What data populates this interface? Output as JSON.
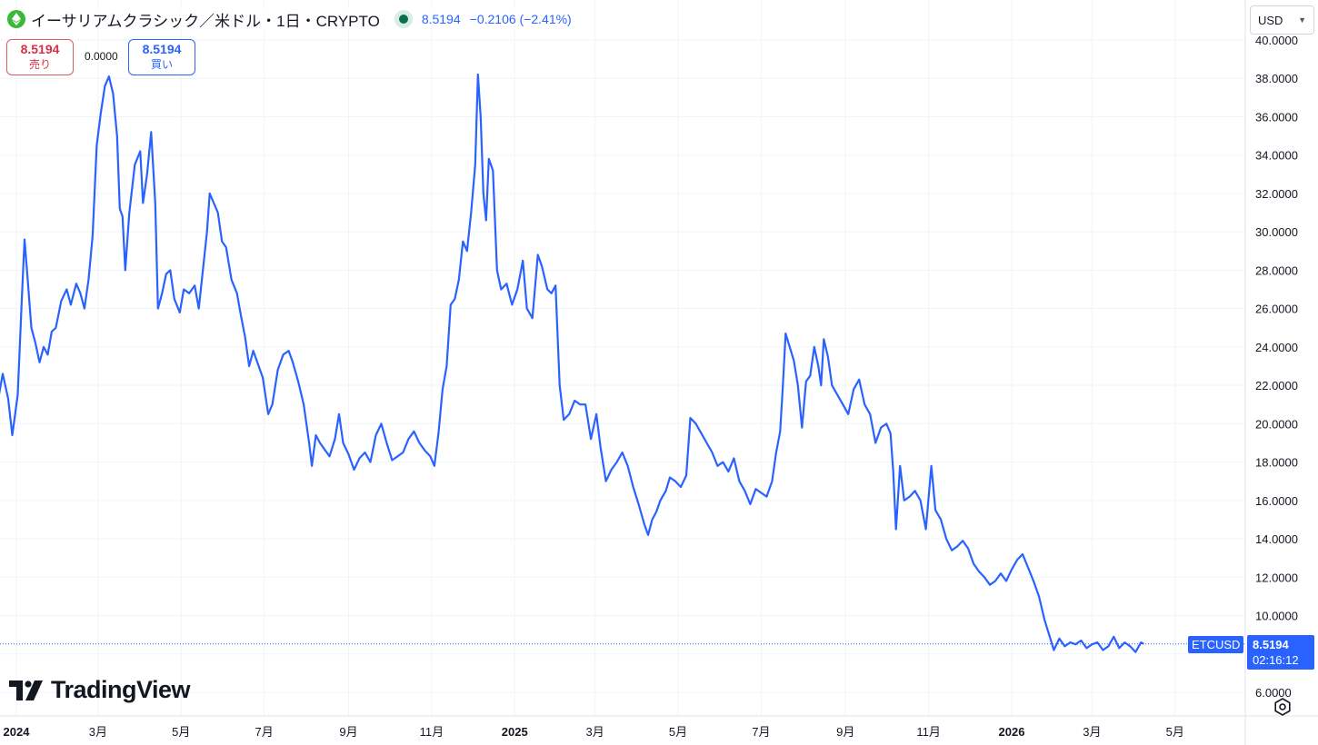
{
  "header": {
    "title": "イーサリアムクラシック／米ドル・1日・CRYPTO",
    "price": "8.5194",
    "change": "−0.2106 (−2.41%)"
  },
  "trade": {
    "sell_value": "8.5194",
    "sell_label": "売り",
    "spread": "0.0000",
    "buy_value": "8.5194",
    "buy_label": "買い"
  },
  "currency": "USD",
  "last_price": {
    "symbol": "ETCUSD",
    "value": "8.5194",
    "countdown": "02:16:12"
  },
  "logo_text": "TradingView",
  "colors": {
    "line": "#2962ff",
    "sell": "#d9304a",
    "buy": "#2962ff",
    "grid": "#f0f3fa"
  },
  "chart_data": {
    "type": "line",
    "title": "",
    "xlabel": "",
    "ylabel": "",
    "ylim": [
      5.0,
      40.5
    ],
    "y_ticks": [
      "6.0000",
      "8.0000",
      "10.0000",
      "12.0000",
      "14.0000",
      "16.0000",
      "18.0000",
      "20.0000",
      "22.0000",
      "24.0000",
      "26.0000",
      "28.0000",
      "30.0000",
      "32.0000",
      "34.0000",
      "36.0000",
      "38.0000",
      "40.0000"
    ],
    "x_ticks": [
      {
        "label": "2024",
        "date": "2024-01-01",
        "bold": true
      },
      {
        "label": "3月",
        "date": "2024-03-01"
      },
      {
        "label": "5月",
        "date": "2024-05-01"
      },
      {
        "label": "7月",
        "date": "2024-07-01"
      },
      {
        "label": "9月",
        "date": "2024-09-01"
      },
      {
        "label": "11月",
        "date": "2024-11-01"
      },
      {
        "label": "2025",
        "date": "2025-01-01",
        "bold": true
      },
      {
        "label": "3月",
        "date": "2025-03-01"
      },
      {
        "label": "5月",
        "date": "2025-05-01"
      },
      {
        "label": "7月",
        "date": "2025-07-01"
      },
      {
        "label": "9月",
        "date": "2025-09-01"
      },
      {
        "label": "11月",
        "date": "2025-11-01"
      },
      {
        "label": "2026",
        "date": "2026-01-01",
        "bold": true
      },
      {
        "label": "3月",
        "date": "2026-03-01"
      },
      {
        "label": "5月",
        "date": "2026-05-01"
      }
    ],
    "series": [
      {
        "values": [
          [
            "2023-12-18",
            21.0
          ],
          [
            "2023-12-22",
            22.6
          ],
          [
            "2023-12-26",
            21.3
          ],
          [
            "2023-12-29",
            19.4
          ],
          [
            "2024-01-02",
            21.5
          ],
          [
            "2024-01-05",
            26.5
          ],
          [
            "2024-01-07",
            29.6
          ],
          [
            "2024-01-09",
            27.8
          ],
          [
            "2024-01-12",
            25.0
          ],
          [
            "2024-01-15",
            24.2
          ],
          [
            "2024-01-18",
            23.2
          ],
          [
            "2024-01-21",
            24.0
          ],
          [
            "2024-01-24",
            23.6
          ],
          [
            "2024-01-27",
            24.8
          ],
          [
            "2024-01-30",
            25.0
          ],
          [
            "2024-02-03",
            26.4
          ],
          [
            "2024-02-07",
            27.0
          ],
          [
            "2024-02-10",
            26.2
          ],
          [
            "2024-02-14",
            27.3
          ],
          [
            "2024-02-17",
            26.8
          ],
          [
            "2024-02-20",
            26.0
          ],
          [
            "2024-02-23",
            27.5
          ],
          [
            "2024-02-26",
            29.8
          ],
          [
            "2024-02-29",
            34.5
          ],
          [
            "2024-03-03",
            36.2
          ],
          [
            "2024-03-06",
            37.6
          ],
          [
            "2024-03-09",
            38.1
          ],
          [
            "2024-03-12",
            37.2
          ],
          [
            "2024-03-15",
            35.0
          ],
          [
            "2024-03-17",
            31.2
          ],
          [
            "2024-03-19",
            30.8
          ],
          [
            "2024-03-21",
            28.0
          ],
          [
            "2024-03-24",
            31.0
          ],
          [
            "2024-03-28",
            33.5
          ],
          [
            "2024-04-01",
            34.2
          ],
          [
            "2024-04-03",
            31.5
          ],
          [
            "2024-04-06",
            33.0
          ],
          [
            "2024-04-09",
            35.2
          ],
          [
            "2024-04-12",
            31.5
          ],
          [
            "2024-04-14",
            26.0
          ],
          [
            "2024-04-17",
            26.8
          ],
          [
            "2024-04-20",
            27.8
          ],
          [
            "2024-04-23",
            28.0
          ],
          [
            "2024-04-26",
            26.5
          ],
          [
            "2024-04-30",
            25.8
          ],
          [
            "2024-05-03",
            27.0
          ],
          [
            "2024-05-07",
            26.8
          ],
          [
            "2024-05-11",
            27.2
          ],
          [
            "2024-05-14",
            26.0
          ],
          [
            "2024-05-17",
            28.0
          ],
          [
            "2024-05-20",
            30.0
          ],
          [
            "2024-05-22",
            32.0
          ],
          [
            "2024-05-25",
            31.5
          ],
          [
            "2024-05-28",
            31.0
          ],
          [
            "2024-05-31",
            29.5
          ],
          [
            "2024-06-03",
            29.2
          ],
          [
            "2024-06-07",
            27.5
          ],
          [
            "2024-06-11",
            26.8
          ],
          [
            "2024-06-14",
            25.6
          ],
          [
            "2024-06-17",
            24.5
          ],
          [
            "2024-06-20",
            23.0
          ],
          [
            "2024-06-23",
            23.8
          ],
          [
            "2024-06-26",
            23.2
          ],
          [
            "2024-06-30",
            22.4
          ],
          [
            "2024-07-04",
            20.5
          ],
          [
            "2024-07-07",
            21.0
          ],
          [
            "2024-07-11",
            22.8
          ],
          [
            "2024-07-15",
            23.6
          ],
          [
            "2024-07-19",
            23.8
          ],
          [
            "2024-07-22",
            23.2
          ],
          [
            "2024-07-26",
            22.2
          ],
          [
            "2024-07-30",
            21.0
          ],
          [
            "2024-08-03",
            19.0
          ],
          [
            "2024-08-05",
            17.8
          ],
          [
            "2024-08-08",
            19.4
          ],
          [
            "2024-08-11",
            19.0
          ],
          [
            "2024-08-14",
            18.7
          ],
          [
            "2024-08-18",
            18.3
          ],
          [
            "2024-08-22",
            19.2
          ],
          [
            "2024-08-25",
            20.5
          ],
          [
            "2024-08-28",
            19.0
          ],
          [
            "2024-09-01",
            18.4
          ],
          [
            "2024-09-05",
            17.6
          ],
          [
            "2024-09-09",
            18.2
          ],
          [
            "2024-09-13",
            18.5
          ],
          [
            "2024-09-17",
            18.0
          ],
          [
            "2024-09-21",
            19.4
          ],
          [
            "2024-09-25",
            20.0
          ],
          [
            "2024-09-29",
            19.0
          ],
          [
            "2024-10-03",
            18.1
          ],
          [
            "2024-10-07",
            18.3
          ],
          [
            "2024-10-11",
            18.5
          ],
          [
            "2024-10-15",
            19.2
          ],
          [
            "2024-10-19",
            19.6
          ],
          [
            "2024-10-23",
            19.0
          ],
          [
            "2024-10-27",
            18.6
          ],
          [
            "2024-10-31",
            18.3
          ],
          [
            "2024-11-03",
            17.8
          ],
          [
            "2024-11-06",
            19.5
          ],
          [
            "2024-11-09",
            21.8
          ],
          [
            "2024-11-12",
            23.0
          ],
          [
            "2024-11-15",
            26.2
          ],
          [
            "2024-11-18",
            26.5
          ],
          [
            "2024-11-21",
            27.5
          ],
          [
            "2024-11-24",
            29.5
          ],
          [
            "2024-11-27",
            29.0
          ],
          [
            "2024-11-30",
            31.0
          ],
          [
            "2024-12-03",
            33.5
          ],
          [
            "2024-12-05",
            38.2
          ],
          [
            "2024-12-07",
            36.0
          ],
          [
            "2024-12-09",
            32.0
          ],
          [
            "2024-12-11",
            30.6
          ],
          [
            "2024-12-13",
            33.8
          ],
          [
            "2024-12-16",
            33.2
          ],
          [
            "2024-12-19",
            28.0
          ],
          [
            "2024-12-22",
            27.0
          ],
          [
            "2024-12-26",
            27.3
          ],
          [
            "2024-12-30",
            26.2
          ],
          [
            "2025-01-03",
            27.0
          ],
          [
            "2025-01-07",
            28.5
          ],
          [
            "2025-01-10",
            26.0
          ],
          [
            "2025-01-14",
            25.5
          ],
          [
            "2025-01-18",
            28.8
          ],
          [
            "2025-01-21",
            28.2
          ],
          [
            "2025-01-25",
            27.0
          ],
          [
            "2025-01-28",
            26.8
          ],
          [
            "2025-01-31",
            27.2
          ],
          [
            "2025-02-03",
            22.0
          ],
          [
            "2025-02-06",
            20.2
          ],
          [
            "2025-02-10",
            20.5
          ],
          [
            "2025-02-14",
            21.2
          ],
          [
            "2025-02-18",
            21.0
          ],
          [
            "2025-02-22",
            21.0
          ],
          [
            "2025-02-26",
            19.2
          ],
          [
            "2025-03-02",
            20.5
          ],
          [
            "2025-03-05",
            18.8
          ],
          [
            "2025-03-09",
            17.0
          ],
          [
            "2025-03-13",
            17.6
          ],
          [
            "2025-03-17",
            18.0
          ],
          [
            "2025-03-21",
            18.5
          ],
          [
            "2025-03-25",
            17.8
          ],
          [
            "2025-03-29",
            16.7
          ],
          [
            "2025-04-02",
            15.8
          ],
          [
            "2025-04-06",
            14.8
          ],
          [
            "2025-04-09",
            14.2
          ],
          [
            "2025-04-12",
            15.0
          ],
          [
            "2025-04-15",
            15.4
          ],
          [
            "2025-04-18",
            16.0
          ],
          [
            "2025-04-22",
            16.5
          ],
          [
            "2025-04-25",
            17.2
          ],
          [
            "2025-04-29",
            17.0
          ],
          [
            "2025-05-03",
            16.7
          ],
          [
            "2025-05-07",
            17.3
          ],
          [
            "2025-05-10",
            20.3
          ],
          [
            "2025-05-14",
            20.0
          ],
          [
            "2025-05-18",
            19.5
          ],
          [
            "2025-05-22",
            19.0
          ],
          [
            "2025-05-26",
            18.5
          ],
          [
            "2025-05-30",
            17.8
          ],
          [
            "2025-06-03",
            18.0
          ],
          [
            "2025-06-07",
            17.5
          ],
          [
            "2025-06-11",
            18.2
          ],
          [
            "2025-06-15",
            17.0
          ],
          [
            "2025-06-19",
            16.5
          ],
          [
            "2025-06-23",
            15.8
          ],
          [
            "2025-06-27",
            16.6
          ],
          [
            "2025-07-01",
            16.4
          ],
          [
            "2025-07-05",
            16.2
          ],
          [
            "2025-07-09",
            17.0
          ],
          [
            "2025-07-12",
            18.5
          ],
          [
            "2025-07-15",
            19.6
          ],
          [
            "2025-07-17",
            22.0
          ],
          [
            "2025-07-19",
            24.7
          ],
          [
            "2025-07-22",
            24.0
          ],
          [
            "2025-07-25",
            23.3
          ],
          [
            "2025-07-28",
            22.0
          ],
          [
            "2025-07-31",
            19.8
          ],
          [
            "2025-08-03",
            22.2
          ],
          [
            "2025-08-06",
            22.5
          ],
          [
            "2025-08-09",
            24.0
          ],
          [
            "2025-08-12",
            23.0
          ],
          [
            "2025-08-14",
            22.0
          ],
          [
            "2025-08-16",
            24.4
          ],
          [
            "2025-08-19",
            23.5
          ],
          [
            "2025-08-22",
            22.0
          ],
          [
            "2025-08-26",
            21.5
          ],
          [
            "2025-08-30",
            21.0
          ],
          [
            "2025-09-03",
            20.5
          ],
          [
            "2025-09-07",
            21.8
          ],
          [
            "2025-09-11",
            22.3
          ],
          [
            "2025-09-15",
            21.0
          ],
          [
            "2025-09-19",
            20.5
          ],
          [
            "2025-09-23",
            19.0
          ],
          [
            "2025-09-27",
            19.8
          ],
          [
            "2025-10-01",
            20.0
          ],
          [
            "2025-10-04",
            19.5
          ],
          [
            "2025-10-06",
            17.5
          ],
          [
            "2025-10-08",
            14.5
          ],
          [
            "2025-10-11",
            17.8
          ],
          [
            "2025-10-14",
            16.0
          ],
          [
            "2025-10-18",
            16.2
          ],
          [
            "2025-10-22",
            16.5
          ],
          [
            "2025-10-26",
            16.0
          ],
          [
            "2025-10-30",
            14.5
          ],
          [
            "2025-11-03",
            17.8
          ],
          [
            "2025-11-06",
            15.5
          ],
          [
            "2025-11-10",
            15.0
          ],
          [
            "2025-11-14",
            14.0
          ],
          [
            "2025-11-18",
            13.4
          ],
          [
            "2025-11-22",
            13.6
          ],
          [
            "2025-11-26",
            13.9
          ],
          [
            "2025-11-30",
            13.5
          ],
          [
            "2025-12-04",
            12.7
          ],
          [
            "2025-12-08",
            12.3
          ],
          [
            "2025-12-12",
            12.0
          ],
          [
            "2025-12-16",
            11.6
          ],
          [
            "2025-12-20",
            11.8
          ],
          [
            "2025-12-24",
            12.2
          ],
          [
            "2025-12-28",
            11.8
          ],
          [
            "2026-01-01",
            12.4
          ],
          [
            "2026-01-05",
            12.9
          ],
          [
            "2026-01-09",
            13.2
          ],
          [
            "2026-01-13",
            12.5
          ],
          [
            "2026-01-17",
            11.8
          ],
          [
            "2026-01-21",
            11.0
          ],
          [
            "2026-01-25",
            9.8
          ],
          [
            "2026-01-29",
            8.9
          ],
          [
            "2026-02-01",
            8.2
          ],
          [
            "2026-02-05",
            8.8
          ],
          [
            "2026-02-09",
            8.4
          ],
          [
            "2026-02-13",
            8.6
          ],
          [
            "2026-02-17",
            8.5
          ],
          [
            "2026-02-21",
            8.7
          ],
          [
            "2026-02-25",
            8.3
          ],
          [
            "2026-03-01",
            8.5
          ],
          [
            "2026-03-05",
            8.6
          ],
          [
            "2026-03-09",
            8.2
          ],
          [
            "2026-03-13",
            8.4
          ],
          [
            "2026-03-17",
            8.9
          ],
          [
            "2026-03-21",
            8.3
          ],
          [
            "2026-03-25",
            8.6
          ],
          [
            "2026-03-29",
            8.4
          ],
          [
            "2026-04-02",
            8.1
          ],
          [
            "2026-04-06",
            8.6
          ],
          [
            "2026-04-08",
            8.52
          ]
        ]
      }
    ],
    "last_value": 8.5194,
    "grid": true,
    "legend_position": "top-left"
  }
}
